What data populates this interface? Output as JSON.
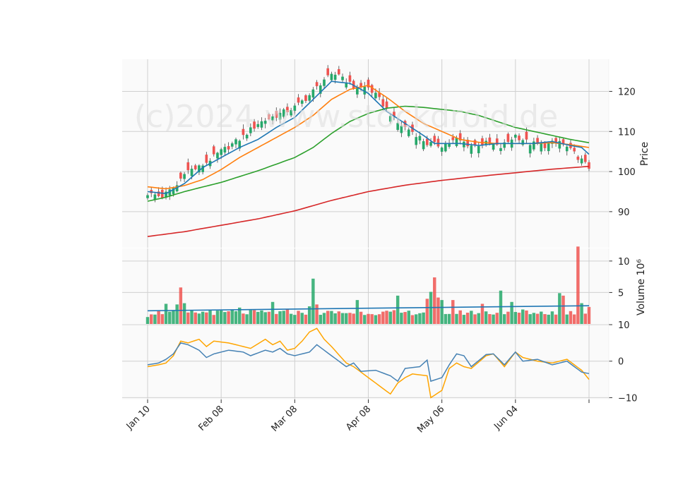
{
  "chart_data": {
    "type": "candlestick",
    "watermark": "(c)2024 www.stockdroid.de",
    "x_tick_labels": [
      "Jan 10",
      "Feb 08",
      "Mar 08",
      "Apr 08",
      "May 06",
      "Jun 04"
    ],
    "x_tick_indices": [
      0,
      20,
      40,
      60,
      80,
      100,
      120
    ],
    "num_days": 121,
    "colors": {
      "up": "#26a86a",
      "down": "#ef5350",
      "ma_fast": "#1f77b4",
      "ma_mid": "#ff7f0e",
      "ma_slow": "#2ca02c",
      "ma_long": "#d62728",
      "volume_ma": "#1f77b4",
      "osc_a": "#4682b4",
      "osc_b": "#ffa500"
    },
    "price_panel": {
      "ylabel": "Price",
      "ylim": [
        81,
        128
      ],
      "yticks": [
        90,
        100,
        110,
        120
      ],
      "close_anchors": [
        [
          0,
          94.5
        ],
        [
          4,
          93.8
        ],
        [
          8,
          96.5
        ],
        [
          10,
          100
        ],
        [
          14,
          101
        ],
        [
          17,
          103
        ],
        [
          20,
          105
        ],
        [
          25,
          108
        ],
        [
          30,
          112
        ],
        [
          35,
          114
        ],
        [
          40,
          116
        ],
        [
          44,
          119
        ],
        [
          48,
          123
        ],
        [
          52,
          124.5
        ],
        [
          56,
          121
        ],
        [
          60,
          121
        ],
        [
          63,
          118
        ],
        [
          68,
          112
        ],
        [
          72,
          110
        ],
        [
          76,
          107
        ],
        [
          80,
          106.5
        ],
        [
          84,
          108
        ],
        [
          88,
          106.5
        ],
        [
          92,
          107
        ],
        [
          96,
          106
        ],
        [
          100,
          109
        ],
        [
          104,
          107
        ],
        [
          108,
          106.5
        ],
        [
          112,
          107.5
        ],
        [
          116,
          104.5
        ],
        [
          120,
          101
        ]
      ],
      "ma_fast_anchors": [
        [
          0,
          95
        ],
        [
          5,
          94.5
        ],
        [
          10,
          97
        ],
        [
          15,
          101
        ],
        [
          20,
          103.5
        ],
        [
          25,
          106
        ],
        [
          30,
          108
        ],
        [
          35,
          111
        ],
        [
          40,
          113.5
        ],
        [
          45,
          118
        ],
        [
          50,
          122.5
        ],
        [
          55,
          122
        ],
        [
          60,
          119.5
        ],
        [
          65,
          115
        ],
        [
          70,
          112
        ],
        [
          75,
          109
        ],
        [
          78,
          107
        ],
        [
          85,
          107
        ],
        [
          90,
          106.5
        ],
        [
          95,
          107
        ],
        [
          100,
          107
        ],
        [
          105,
          107
        ],
        [
          110,
          107.5
        ],
        [
          115,
          106.5
        ],
        [
          118,
          106
        ],
        [
          120,
          104.3
        ]
      ],
      "ma_mid_anchors": [
        [
          0,
          96.2
        ],
        [
          5,
          95.7
        ],
        [
          10,
          96.5
        ],
        [
          15,
          98
        ],
        [
          20,
          100.5
        ],
        [
          25,
          103.5
        ],
        [
          30,
          106
        ],
        [
          35,
          108.5
        ],
        [
          40,
          111
        ],
        [
          45,
          114
        ],
        [
          50,
          118
        ],
        [
          55,
          120.5
        ],
        [
          60,
          121.5
        ],
        [
          65,
          118.5
        ],
        [
          70,
          115
        ],
        [
          75,
          112
        ],
        [
          80,
          110
        ],
        [
          85,
          108
        ],
        [
          90,
          107.3
        ],
        [
          95,
          107
        ],
        [
          100,
          107
        ],
        [
          105,
          107
        ],
        [
          110,
          107.2
        ],
        [
          115,
          106.7
        ],
        [
          120,
          106
        ]
      ],
      "ma_slow_anchors": [
        [
          0,
          92.6
        ],
        [
          5,
          93.6
        ],
        [
          10,
          95
        ],
        [
          20,
          97.3
        ],
        [
          30,
          100.2
        ],
        [
          40,
          103.5
        ],
        [
          45,
          106
        ],
        [
          50,
          109.5
        ],
        [
          55,
          112.5
        ],
        [
          60,
          114.5
        ],
        [
          65,
          115.8
        ],
        [
          70,
          116.3
        ],
        [
          75,
          116
        ],
        [
          80,
          115.5
        ],
        [
          85,
          115
        ],
        [
          90,
          114
        ],
        [
          95,
          112.5
        ],
        [
          100,
          111
        ],
        [
          105,
          110
        ],
        [
          110,
          109
        ],
        [
          115,
          108
        ],
        [
          120,
          107.2
        ]
      ],
      "ma_long_anchors": [
        [
          0,
          83.8
        ],
        [
          10,
          85
        ],
        [
          20,
          86.6
        ],
        [
          30,
          88.2
        ],
        [
          40,
          90.2
        ],
        [
          50,
          92.8
        ],
        [
          60,
          95
        ],
        [
          70,
          96.6
        ],
        [
          80,
          97.8
        ],
        [
          90,
          98.8
        ],
        [
          100,
          99.7
        ],
        [
          110,
          100.6
        ],
        [
          120,
          101.3
        ]
      ],
      "down_days": [
        1,
        3,
        4,
        9,
        11,
        13,
        16,
        18,
        22,
        26,
        29,
        33,
        35,
        38,
        41,
        43,
        46,
        49,
        52,
        55,
        56,
        58,
        60,
        61,
        63,
        64,
        65,
        67,
        70,
        72,
        76,
        78,
        79,
        83,
        85,
        87,
        89,
        91,
        93,
        95,
        98,
        101,
        103,
        106,
        108,
        111,
        113,
        115,
        116,
        117,
        119,
        120
      ]
    },
    "volume_panel": {
      "ylabel": "Volume  10⁶",
      "ylim": [
        0,
        12
      ],
      "yticks": [
        5,
        10
      ],
      "base": 1.8,
      "spikes": [
        [
          0,
          1.1
        ],
        [
          5,
          3.2
        ],
        [
          8,
          3.1
        ],
        [
          9,
          5.8
        ],
        [
          10,
          3.3
        ],
        [
          17,
          2.3
        ],
        [
          23,
          2.3
        ],
        [
          25,
          2.6
        ],
        [
          28,
          2.2
        ],
        [
          34,
          3.5
        ],
        [
          38,
          2.4
        ],
        [
          44,
          2.8
        ],
        [
          45,
          7.2
        ],
        [
          46,
          3.1
        ],
        [
          57,
          3.8
        ],
        [
          68,
          4.5
        ],
        [
          76,
          4.0
        ],
        [
          77,
          5.1
        ],
        [
          78,
          7.4
        ],
        [
          79,
          4.2
        ],
        [
          80,
          3.8
        ],
        [
          83,
          3.8
        ],
        [
          91,
          3.2
        ],
        [
          96,
          5.3
        ],
        [
          99,
          3.5
        ],
        [
          102,
          2.3
        ],
        [
          112,
          4.9
        ],
        [
          113,
          4.5
        ],
        [
          117,
          12.3
        ],
        [
          118,
          3.3
        ],
        [
          120,
          2.7
        ]
      ],
      "ma_level": 2.5
    },
    "oscillator_panel": {
      "ylim": [
        -10.5,
        10
      ],
      "yticks": [
        10,
        0,
        -10
      ],
      "line_a_anchors": [
        [
          0,
          -1
        ],
        [
          3,
          -0.5
        ],
        [
          5,
          0.5
        ],
        [
          7,
          2
        ],
        [
          9,
          5
        ],
        [
          11,
          4.5
        ],
        [
          14,
          3
        ],
        [
          16,
          1
        ],
        [
          18,
          2
        ],
        [
          22,
          3
        ],
        [
          26,
          2.5
        ],
        [
          28,
          1.5
        ],
        [
          32,
          3
        ],
        [
          34,
          2.5
        ],
        [
          36,
          3.5
        ],
        [
          38,
          2
        ],
        [
          40,
          1.5
        ],
        [
          44,
          2.5
        ],
        [
          46,
          4.5
        ],
        [
          48,
          3
        ],
        [
          50,
          1.5
        ],
        [
          54,
          -1.5
        ],
        [
          56,
          -0.5
        ],
        [
          58,
          -2.8
        ],
        [
          62,
          -2.5
        ],
        [
          66,
          -4
        ],
        [
          68,
          -5.5
        ],
        [
          70,
          -2
        ],
        [
          74,
          -1.5
        ],
        [
          76,
          0.3
        ],
        [
          77,
          -5.5
        ],
        [
          80,
          -4.5
        ],
        [
          82,
          -1
        ],
        [
          84,
          2
        ],
        [
          86,
          1.5
        ],
        [
          88,
          -1.5
        ],
        [
          92,
          1.8
        ],
        [
          94,
          2
        ],
        [
          97,
          -1
        ],
        [
          100,
          2.5
        ],
        [
          102,
          0
        ],
        [
          106,
          0.5
        ],
        [
          110,
          -1
        ],
        [
          114,
          0
        ],
        [
          116,
          -1.5
        ],
        [
          118,
          -3
        ],
        [
          120,
          -3.4
        ]
      ],
      "line_b_anchors": [
        [
          0,
          -1.5
        ],
        [
          3,
          -1
        ],
        [
          5,
          -0.5
        ],
        [
          7,
          1.5
        ],
        [
          9,
          5.5
        ],
        [
          11,
          5
        ],
        [
          14,
          6
        ],
        [
          16,
          4
        ],
        [
          18,
          5.5
        ],
        [
          22,
          5
        ],
        [
          26,
          4
        ],
        [
          28,
          3.5
        ],
        [
          32,
          6
        ],
        [
          34,
          4.5
        ],
        [
          36,
          5.5
        ],
        [
          38,
          3
        ],
        [
          40,
          3.5
        ],
        [
          42,
          5.5
        ],
        [
          44,
          8
        ],
        [
          46,
          9
        ],
        [
          48,
          6
        ],
        [
          50,
          4
        ],
        [
          54,
          -0.5
        ],
        [
          56,
          -1.5
        ],
        [
          58,
          -3
        ],
        [
          62,
          -6
        ],
        [
          66,
          -9
        ],
        [
          68,
          -6
        ],
        [
          70,
          -4.5
        ],
        [
          72,
          -3.5
        ],
        [
          76,
          -4
        ],
        [
          77,
          -10
        ],
        [
          80,
          -8
        ],
        [
          82,
          -2
        ],
        [
          84,
          -0.5
        ],
        [
          86,
          -1.5
        ],
        [
          88,
          -2
        ],
        [
          92,
          1.5
        ],
        [
          94,
          2
        ],
        [
          97,
          -1.5
        ],
        [
          100,
          2.5
        ],
        [
          102,
          1
        ],
        [
          106,
          0
        ],
        [
          110,
          -0.5
        ],
        [
          114,
          0.5
        ],
        [
          116,
          -1
        ],
        [
          118,
          -2.5
        ],
        [
          120,
          -5
        ]
      ]
    }
  }
}
